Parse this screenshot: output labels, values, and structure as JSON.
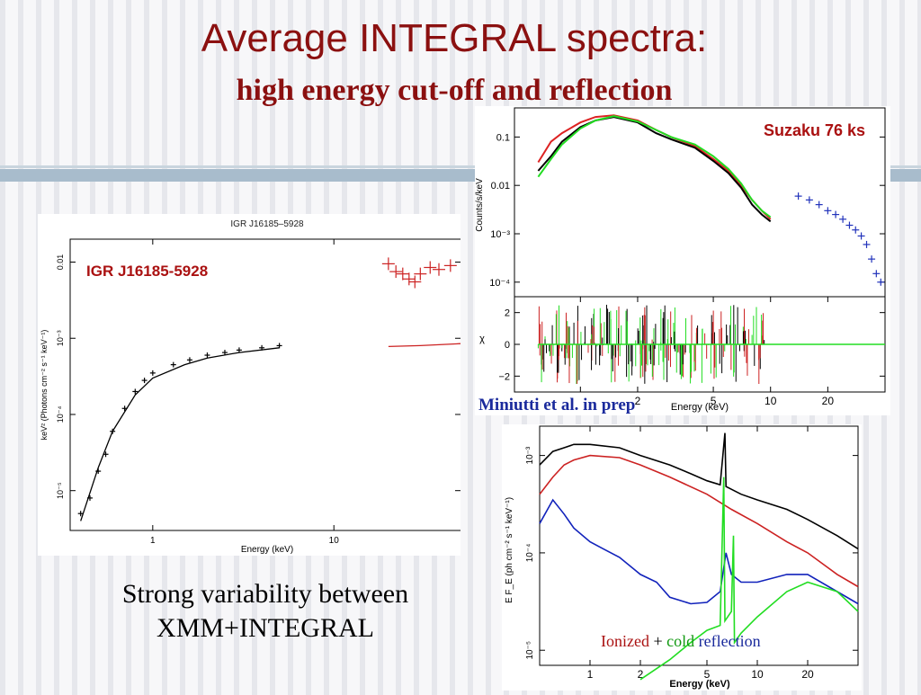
{
  "slide": {
    "title": "Average INTEGRAL spectra:",
    "subtitle": "high energy cut-off and reflection",
    "caption_line1": "Strong variability between",
    "caption_line2": "XMM+INTEGRAL",
    "reference": "Miniutti et al. in prep"
  },
  "chart_data": [
    {
      "type": "scatter",
      "title": "IGR J16185–5928",
      "label": "IGR J16185-5928",
      "xlabel": "Energy (keV)",
      "ylabel": "keV² (Photons cm⁻² s⁻¹ keV⁻¹)",
      "xscale": "log",
      "yscale": "log",
      "xlim": [
        0.35,
        50
      ],
      "ylim": [
        3e-06,
        0.02
      ],
      "xticks": [
        {
          "v": 1,
          "label": "1"
        },
        {
          "v": 10,
          "label": "10"
        }
      ],
      "yticks": [
        {
          "v": 1e-05,
          "label": "10⁻⁵"
        },
        {
          "v": 0.0001,
          "label": "10⁻⁴"
        },
        {
          "v": 0.001,
          "label": "10⁻³"
        },
        {
          "v": 0.01,
          "label": "0.01"
        }
      ],
      "series": [
        {
          "color": "#000000",
          "points": [
            [
              0.4,
              5e-06
            ],
            [
              0.45,
              8e-06
            ],
            [
              0.5,
              1.8e-05
            ],
            [
              0.55,
              3e-05
            ],
            [
              0.6,
              6e-05
            ],
            [
              0.7,
              0.00012
            ],
            [
              0.8,
              0.0002
            ],
            [
              0.9,
              0.00028
            ],
            [
              1.0,
              0.00035
            ],
            [
              1.3,
              0.00045
            ],
            [
              1.6,
              0.00052
            ],
            [
              2.0,
              0.0006
            ],
            [
              2.5,
              0.00065
            ],
            [
              3.0,
              0.0007
            ],
            [
              4.0,
              0.00075
            ],
            [
              5.0,
              0.0008
            ]
          ]
        },
        {
          "color": "#cc2222",
          "points": [
            [
              20,
              0.0095
            ],
            [
              22,
              0.0075
            ],
            [
              24,
              0.007
            ],
            [
              26,
              0.006
            ],
            [
              28,
              0.0055
            ],
            [
              30,
              0.007
            ],
            [
              34,
              0.0085
            ],
            [
              38,
              0.008
            ],
            [
              44,
              0.009
            ]
          ]
        }
      ],
      "models": [
        {
          "color": "#000000",
          "points": [
            [
              0.4,
              4e-06
            ],
            [
              0.5,
              2e-05
            ],
            [
              0.6,
              6e-05
            ],
            [
              0.8,
              0.00018
            ],
            [
              1.0,
              0.0003
            ],
            [
              1.5,
              0.00045
            ],
            [
              2,
              0.00055
            ],
            [
              3,
              0.00065
            ],
            [
              5,
              0.00075
            ]
          ]
        },
        {
          "color": "#cc2222",
          "points": [
            [
              20,
              0.00078
            ],
            [
              30,
              0.0008
            ],
            [
              50,
              0.00085
            ]
          ]
        }
      ]
    },
    {
      "type": "line",
      "label": "Suzaku 76 ks",
      "xlabel": "Energy (keV)",
      "ylabel": "Counts/s/keV",
      "xscale": "log",
      "yscale": "log",
      "xlim": [
        0.45,
        40
      ],
      "ylim": [
        5e-05,
        0.4
      ],
      "xticks": [
        {
          "v": 1,
          "label": "1"
        },
        {
          "v": 2,
          "label": "2"
        },
        {
          "v": 5,
          "label": "5"
        },
        {
          "v": 10,
          "label": "10"
        },
        {
          "v": 20,
          "label": "20"
        }
      ],
      "yticks": [
        {
          "v": 0.0001,
          "label": "10⁻⁴"
        },
        {
          "v": 0.001,
          "label": "10⁻³"
        },
        {
          "v": 0.01,
          "label": "0.01"
        },
        {
          "v": 0.1,
          "label": "0.1"
        }
      ],
      "series": [
        {
          "name": "",
          "color": "#dd2222",
          "points": [
            [
              0.6,
              0.03
            ],
            [
              0.7,
              0.08
            ],
            [
              0.8,
              0.12
            ],
            [
              1.0,
              0.2
            ],
            [
              1.2,
              0.26
            ],
            [
              1.5,
              0.28
            ],
            [
              2,
              0.22
            ],
            [
              2.5,
              0.14
            ],
            [
              3,
              0.1
            ],
            [
              4,
              0.065
            ],
            [
              5,
              0.035
            ],
            [
              6,
              0.02
            ],
            [
              7,
              0.01
            ],
            [
              8,
              0.005
            ],
            [
              9,
              0.003
            ],
            [
              10,
              0.002
            ]
          ]
        },
        {
          "name": "",
          "color": "#000000",
          "points": [
            [
              0.6,
              0.02
            ],
            [
              0.7,
              0.04
            ],
            [
              0.8,
              0.08
            ],
            [
              1.0,
              0.16
            ],
            [
              1.2,
              0.22
            ],
            [
              1.5,
              0.26
            ],
            [
              2,
              0.2
            ],
            [
              2.5,
              0.12
            ],
            [
              3,
              0.09
            ],
            [
              4,
              0.06
            ],
            [
              5,
              0.032
            ],
            [
              6,
              0.018
            ],
            [
              7,
              0.009
            ],
            [
              8,
              0.004
            ],
            [
              9,
              0.0025
            ],
            [
              10,
              0.0018
            ]
          ]
        },
        {
          "name": "",
          "color": "#22dd22",
          "points": [
            [
              0.6,
              0.015
            ],
            [
              0.7,
              0.035
            ],
            [
              0.8,
              0.07
            ],
            [
              1.0,
              0.15
            ],
            [
              1.2,
              0.22
            ],
            [
              1.5,
              0.27
            ],
            [
              2,
              0.21
            ],
            [
              2.5,
              0.14
            ],
            [
              3,
              0.1
            ],
            [
              4,
              0.07
            ],
            [
              5,
              0.04
            ],
            [
              6,
              0.022
            ],
            [
              7,
              0.011
            ],
            [
              8,
              0.005
            ],
            [
              9,
              0.003
            ],
            [
              10,
              0.0022
            ]
          ]
        },
        {
          "name": "",
          "color": "#2233bb",
          "points": [
            [
              14,
              0.006
            ],
            [
              16,
              0.005
            ],
            [
              18,
              0.004
            ],
            [
              20,
              0.003
            ],
            [
              22,
              0.0025
            ],
            [
              24,
              0.002
            ],
            [
              26,
              0.0015
            ],
            [
              28,
              0.0012
            ],
            [
              30,
              0.0009
            ],
            [
              32,
              0.0006
            ],
            [
              34,
              0.0003
            ],
            [
              36,
              0.00015
            ],
            [
              38,
              0.0001
            ]
          ]
        }
      ],
      "residuals": {
        "ylabel": "χ",
        "ylim": [
          -3,
          3
        ],
        "yticks": [
          {
            "v": -2,
            "label": "−2"
          },
          {
            "v": 0,
            "label": "0"
          },
          {
            "v": 2,
            "label": "2"
          }
        ]
      }
    },
    {
      "type": "line",
      "xlabel": "Energy (keV)",
      "ylabel": "E F_E (ph cm⁻² s⁻¹ keV⁻¹)",
      "xscale": "log",
      "yscale": "log",
      "xlim": [
        0.5,
        40
      ],
      "ylim": [
        7e-06,
        0.002
      ],
      "xticks": [
        {
          "v": 1,
          "label": "1"
        },
        {
          "v": 2,
          "label": "2"
        },
        {
          "v": 5,
          "label": "5"
        },
        {
          "v": 10,
          "label": "10"
        },
        {
          "v": 20,
          "label": "20"
        }
      ],
      "yticks": [
        {
          "v": 1e-05,
          "label": "10⁻⁵"
        },
        {
          "v": 0.0001,
          "label": "10⁻⁴"
        },
        {
          "v": 0.001,
          "label": "10⁻³"
        }
      ],
      "legend": [
        {
          "text": "Ionized",
          "color": "#aa1111"
        },
        {
          "text": "+",
          "color": "#000000"
        },
        {
          "text": "cold",
          "color": "#119911"
        },
        {
          "text": "reflection",
          "color": "#1a2a9c"
        }
      ],
      "series": [
        {
          "color": "#000000",
          "points": [
            [
              0.5,
              0.0008
            ],
            [
              0.6,
              0.0011
            ],
            [
              0.7,
              0.0012
            ],
            [
              0.8,
              0.0013
            ],
            [
              1,
              0.0013
            ],
            [
              1.5,
              0.0012
            ],
            [
              2,
              0.001
            ],
            [
              3,
              0.0008
            ],
            [
              4,
              0.00065
            ],
            [
              5,
              0.00055
            ],
            [
              6,
              0.0005
            ],
            [
              6.4,
              0.0017
            ],
            [
              6.5,
              0.00048
            ],
            [
              7,
              0.00045
            ],
            [
              8,
              0.0004
            ],
            [
              10,
              0.00035
            ],
            [
              15,
              0.00028
            ],
            [
              20,
              0.00022
            ],
            [
              30,
              0.00015
            ],
            [
              40,
              0.00011
            ]
          ]
        },
        {
          "color": "#cc2222",
          "points": [
            [
              0.5,
              0.0004
            ],
            [
              0.6,
              0.0006
            ],
            [
              0.7,
              0.0008
            ],
            [
              0.8,
              0.0009
            ],
            [
              1,
              0.001
            ],
            [
              1.5,
              0.00095
            ],
            [
              2,
              0.0008
            ],
            [
              3,
              0.0006
            ],
            [
              5,
              0.0004
            ],
            [
              7,
              0.00028
            ],
            [
              10,
              0.0002
            ],
            [
              15,
              0.00013
            ],
            [
              20,
              0.0001
            ],
            [
              30,
              6e-05
            ],
            [
              40,
              4.5e-05
            ]
          ]
        },
        {
          "color": "#1122bb",
          "points": [
            [
              0.5,
              0.0002
            ],
            [
              0.6,
              0.00035
            ],
            [
              0.7,
              0.00025
            ],
            [
              0.8,
              0.00018
            ],
            [
              1,
              0.00013
            ],
            [
              1.2,
              0.00011
            ],
            [
              1.5,
              9e-05
            ],
            [
              2,
              6e-05
            ],
            [
              2.5,
              5e-05
            ],
            [
              3,
              3.5e-05
            ],
            [
              4,
              3e-05
            ],
            [
              5,
              3.1e-05
            ],
            [
              6,
              4e-05
            ],
            [
              6.5,
              0.0001
            ],
            [
              7,
              6e-05
            ],
            [
              8,
              5e-05
            ],
            [
              10,
              5e-05
            ],
            [
              15,
              6e-05
            ],
            [
              20,
              6e-05
            ],
            [
              30,
              4e-05
            ],
            [
              40,
              3e-05
            ]
          ]
        },
        {
          "color": "#22dd22",
          "points": [
            [
              2,
              5e-06
            ],
            [
              3,
              8e-06
            ],
            [
              4,
              1.2e-05
            ],
            [
              5,
              1.6e-05
            ],
            [
              6,
              1.8e-05
            ],
            [
              6.3,
              0.0006
            ],
            [
              6.4,
              2e-05
            ],
            [
              7,
              2.5e-05
            ],
            [
              7.2,
              0.00015
            ],
            [
              7.3,
              1.2e-05
            ],
            [
              8,
              1.5e-05
            ],
            [
              10,
              2.2e-05
            ],
            [
              15,
              4e-05
            ],
            [
              20,
              5e-05
            ],
            [
              30,
              4e-05
            ],
            [
              40,
              2.5e-05
            ]
          ]
        }
      ]
    }
  ]
}
